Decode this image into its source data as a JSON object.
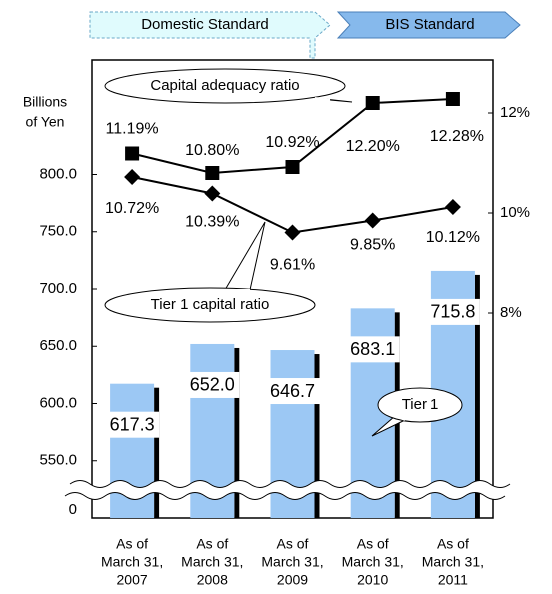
{
  "chart_data": {
    "type": "combo",
    "headers": [
      "Domestic Standard",
      "BIS Standard"
    ],
    "y_label": [
      "Billions",
      "of Yen"
    ],
    "categories": [
      [
        "As of",
        "March 31,",
        "2007"
      ],
      [
        "As of",
        "March 31,",
        "2008"
      ],
      [
        "As of",
        "March 31,",
        "2009"
      ],
      [
        "As of",
        "March 31,",
        "2010"
      ],
      [
        "As of",
        "March 31,",
        "2011"
      ]
    ],
    "series": [
      {
        "name": "Tier 1",
        "type": "bar",
        "color": "#9cc8f4",
        "values": [
          617.3,
          652.0,
          646.7,
          683.1,
          715.8
        ],
        "value_labels": [
          "617.3",
          "652.0",
          "646.7",
          "683.1",
          "715.8"
        ]
      },
      {
        "name": "Capital adequacy ratio",
        "type": "line",
        "axis": "y2",
        "marker": "square",
        "color": "#000000",
        "values": [
          11.19,
          10.8,
          10.92,
          12.2,
          12.28
        ],
        "value_labels": [
          "11.19%",
          "10.80%",
          "10.92%",
          "12.20%",
          "12.28%"
        ]
      },
      {
        "name": "Tier 1 capital ratio",
        "type": "line",
        "axis": "y2",
        "marker": "diamond",
        "color": "#000000",
        "values": [
          10.72,
          10.39,
          9.61,
          9.85,
          10.12
        ],
        "value_labels": [
          "10.72%",
          "10.39%",
          "9.61%",
          "9.85%",
          "10.12%"
        ]
      }
    ],
    "ylim": [
      0,
      900
    ],
    "axis_break": [
      0,
      500
    ],
    "yticks": [
      0,
      {
        "value": 550,
        "label": "550.0"
      },
      {
        "value": 600,
        "label": "600.0"
      },
      {
        "value": 650,
        "label": "650.0"
      },
      {
        "value": 700,
        "label": "700.0"
      },
      {
        "value": 750,
        "label": "750.0"
      },
      {
        "value": 800,
        "label": "800.0"
      }
    ],
    "y2lim": [
      3.9,
      13.06
    ],
    "y2ticks": [
      {
        "value": 8,
        "label": "8%"
      },
      {
        "value": 10,
        "label": "10%"
      },
      {
        "value": 12,
        "label": "12%"
      }
    ]
  }
}
